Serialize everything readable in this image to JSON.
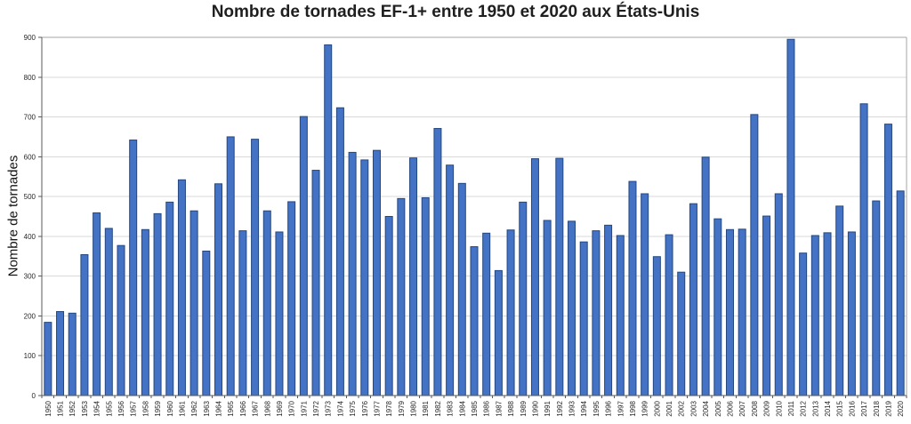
{
  "chart_data": {
    "type": "bar",
    "title": "Nombre de tornades EF-1+ entre 1950 et 2020 aux États-Unis",
    "xlabel": "",
    "ylabel": "Nombre de tornades",
    "ylim": [
      0,
      900
    ],
    "yticks": [
      0,
      100,
      200,
      300,
      400,
      500,
      600,
      700,
      800,
      900
    ],
    "grid": "horizontal",
    "legend": "none",
    "colors": {
      "bar_fill": "#4472C4",
      "bar_stroke": "#24477F",
      "gridline": "#D9D9D9",
      "plot_border": "#A6A6A6",
      "axis": "#595959",
      "tick_text": "#262626",
      "title_text": "#1F1F1F",
      "background": "#FFFFFF"
    },
    "categories": [
      "1950",
      "1951",
      "1952",
      "1953",
      "1954",
      "1955",
      "1956",
      "1957",
      "1958",
      "1959",
      "1960",
      "1961",
      "1962",
      "1963",
      "1964",
      "1965",
      "1966",
      "1967",
      "1968",
      "1969",
      "1970",
      "1971",
      "1972",
      "1973",
      "1974",
      "1975",
      "1976",
      "1977",
      "1978",
      "1979",
      "1980",
      "1981",
      "1982",
      "1983",
      "1984",
      "1985",
      "1986",
      "1987",
      "1988",
      "1989",
      "1990",
      "1991",
      "1992",
      "1993",
      "1994",
      "1995",
      "1996",
      "1997",
      "1998",
      "1999",
      "2000",
      "2001",
      "2002",
      "2003",
      "2004",
      "2005",
      "2006",
      "2007",
      "2008",
      "2009",
      "2010",
      "2011",
      "2012",
      "2013",
      "2014",
      "2015",
      "2016",
      "2017",
      "2018",
      "2019",
      "2020"
    ],
    "values": [
      184,
      211,
      207,
      354,
      459,
      420,
      377,
      642,
      417,
      457,
      486,
      542,
      464,
      363,
      532,
      650,
      414,
      644,
      464,
      411,
      487,
      701,
      566,
      881,
      723,
      611,
      592,
      616,
      450,
      495,
      597,
      497,
      671,
      579,
      533,
      374,
      408,
      314,
      416,
      486,
      595,
      440,
      596,
      438,
      386,
      414,
      428,
      402,
      538,
      507,
      349,
      404,
      310,
      482,
      599,
      444,
      417,
      418,
      706,
      451,
      507,
      895,
      358,
      402,
      409,
      476,
      411,
      733,
      489,
      682,
      514
    ]
  }
}
